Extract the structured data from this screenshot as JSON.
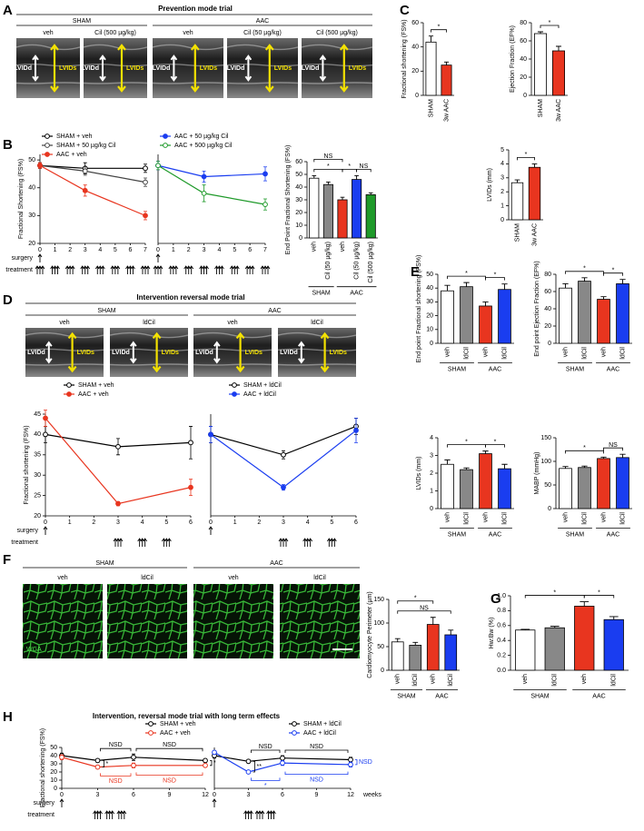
{
  "figure": {
    "panel_letters": [
      "A",
      "B",
      "C",
      "D",
      "E",
      "F",
      "G",
      "H"
    ],
    "prevention": {
      "title": "Prevention mode trial",
      "groups": [
        {
          "name": "SHAM",
          "images": [
            "veh",
            "Cil (500 µg/kg)"
          ]
        },
        {
          "name": "AAC",
          "images": [
            "veh",
            "Cil (50 µg/kg)",
            "Cil (500 µg/kg)"
          ]
        }
      ],
      "dimensions": [
        "LVIDd",
        "LVIDs"
      ]
    },
    "reversal": {
      "title": "Intervention reversal mode trial",
      "groups": [
        {
          "name": "SHAM",
          "images": [
            "veh",
            "ldCil"
          ]
        },
        {
          "name": "AAC",
          "images": [
            "veh",
            "ldCil"
          ]
        }
      ],
      "dimensions": [
        "LVIDd",
        "LVIDs"
      ]
    },
    "histology": {
      "groups": [
        {
          "name": "SHAM",
          "images": [
            "veh",
            "ldCil"
          ]
        },
        {
          "name": "AAC",
          "images": [
            "veh",
            "ldCil"
          ]
        }
      ],
      "stain": "WGA"
    },
    "long_term": {
      "title": "Intervention, reversal mode trial with long term effects"
    }
  },
  "chart_data": [
    {
      "type": "bar",
      "ylabel": "Fractional shortening (FS%)",
      "categories": [
        "SHAM",
        "3w AAC"
      ],
      "values": [
        44,
        25
      ],
      "errors": [
        5,
        2.5
      ],
      "colors": [
        "#ffffff",
        "#e8351f"
      ],
      "ylim": [
        0,
        60
      ],
      "yticks": [
        0,
        20,
        40,
        60
      ],
      "annotations": [
        {
          "text": "*",
          "from": 0,
          "to": 1
        }
      ]
    },
    {
      "type": "bar",
      "ylabel": "Ejection Fraction (EF%)",
      "categories": [
        "SHAM",
        "3w AAC"
      ],
      "values": [
        68,
        49
      ],
      "errors": [
        2,
        5
      ],
      "colors": [
        "#ffffff",
        "#e8351f"
      ],
      "ylim": [
        0,
        80
      ],
      "yticks": [
        0,
        20,
        40,
        60,
        80
      ],
      "annotations": [
        {
          "text": "*",
          "from": 0,
          "to": 1
        }
      ]
    },
    {
      "type": "bar",
      "ylabel": "LVIDs (mm)",
      "categories": [
        "SHAM",
        "3w AAC"
      ],
      "values": [
        2.65,
        3.75
      ],
      "errors": [
        0.2,
        0.25
      ],
      "colors": [
        "#ffffff",
        "#e8351f"
      ],
      "ylim": [
        0,
        5
      ],
      "yticks": [
        0,
        1,
        2,
        3,
        4,
        5
      ],
      "annotations": [
        {
          "text": "*",
          "from": 0,
          "to": 1
        }
      ]
    },
    {
      "type": "line",
      "ylabel": "Fractional Shortening (FS%)",
      "x": [
        0,
        3,
        7
      ],
      "xlim": [
        0,
        7
      ],
      "xticks": [
        0,
        1,
        2,
        3,
        4,
        5,
        6,
        7
      ],
      "ylim": [
        20,
        52
      ],
      "yticks": [
        20,
        30,
        40,
        50
      ],
      "series": [
        {
          "name": "SHAM + veh",
          "color": "#000000",
          "marker": "open",
          "values": [
            48,
            47,
            47
          ],
          "errors": [
            1,
            2,
            1.5
          ]
        },
        {
          "name": "SHAM + 50 µg/kg Cil",
          "color": "#444444",
          "marker": "open",
          "values": [
            48,
            46,
            42
          ],
          "errors": [
            1,
            1.5,
            1.5
          ]
        },
        {
          "name": "AAC + veh",
          "color": "#e8351f",
          "marker": "filled",
          "values": [
            48,
            39,
            30
          ],
          "errors": [
            1,
            2,
            1.5
          ]
        }
      ],
      "row_labels": [
        "surgery",
        "treatment"
      ],
      "surgery_x": [
        0
      ],
      "treatment_x": [
        0,
        1,
        2,
        3,
        4,
        5,
        6,
        7
      ]
    },
    {
      "type": "line",
      "x": [
        0,
        3,
        7
      ],
      "xlim": [
        0,
        7
      ],
      "xticks": [
        0,
        1,
        2,
        3,
        4,
        5,
        6,
        7
      ],
      "ylim": [
        20,
        52
      ],
      "series": [
        {
          "name": "AAC + 50 µg/kg Cil",
          "color": "#1a3df0",
          "marker": "filled",
          "values": [
            48,
            44,
            45
          ],
          "errors": [
            1.5,
            2,
            2.5
          ]
        },
        {
          "name": "AAC + 500 µg/kg Cil",
          "color": "#1f9a2a",
          "marker": "open",
          "values": [
            48,
            38,
            34
          ],
          "errors": [
            1.5,
            3,
            2
          ]
        }
      ],
      "surgery_x": [
        0
      ],
      "treatment_x": [
        0,
        1,
        2,
        3,
        4,
        5,
        6,
        7
      ]
    },
    {
      "type": "bar",
      "ylabel": "End Point Fractional Shortening (FS%)",
      "categories": [
        "veh",
        "Cil (50 µg/kg)",
        "veh",
        "Cil (50 µg/kg)",
        "Cil (500 µg/kg)"
      ],
      "values": [
        47,
        42,
        30,
        46,
        34
      ],
      "errors": [
        2,
        2,
        2,
        3,
        1.5
      ],
      "colors": [
        "#ffffff",
        "#888888",
        "#e8351f",
        "#1a3df0",
        "#1f9a2a"
      ],
      "ylim": [
        0,
        60
      ],
      "yticks": [
        0,
        10,
        20,
        30,
        40,
        50,
        60
      ],
      "groups": [
        {
          "name": "SHAM",
          "from": 0,
          "to": 1
        },
        {
          "name": "AAC",
          "from": 2,
          "to": 4
        }
      ],
      "annotations": [
        {
          "text": "*",
          "from": 0,
          "to": 2
        },
        {
          "text": "*",
          "from": 2,
          "to": 3
        },
        {
          "text": "NS",
          "from": 0,
          "to": 2
        },
        {
          "text": "NS",
          "from": 3,
          "to": 4
        }
      ]
    },
    {
      "type": "line",
      "ylabel": "Fractional shortening (FS%)",
      "x": [
        0,
        3,
        6
      ],
      "xlim": [
        0,
        6
      ],
      "xticks": [
        0,
        1,
        2,
        3,
        4,
        5,
        6
      ],
      "ylim": [
        20,
        45
      ],
      "yticks": [
        20,
        25,
        30,
        35,
        40,
        45
      ],
      "series": [
        {
          "name": "SHAM + veh",
          "color": "#000000",
          "marker": "open",
          "values": [
            40,
            37,
            38
          ],
          "errors": [
            2,
            2,
            4
          ]
        },
        {
          "name": "AAC + veh",
          "color": "#e8351f",
          "marker": "filled",
          "values": [
            44,
            23,
            27
          ],
          "errors": [
            2,
            0.5,
            2
          ]
        }
      ],
      "row_labels": [
        "surgery",
        "treatment"
      ],
      "surgery_x": [
        0
      ],
      "treatment_x": [
        3,
        4,
        5
      ]
    },
    {
      "type": "line",
      "x": [
        0,
        3,
        6
      ],
      "xlim": [
        0,
        6
      ],
      "xticks": [
        0,
        1,
        2,
        3,
        4,
        5,
        6
      ],
      "ylim": [
        20,
        45
      ],
      "series": [
        {
          "name": "SHAM + ldCil",
          "color": "#000000",
          "marker": "open",
          "values": [
            40,
            35,
            42
          ],
          "errors": [
            2,
            1,
            2
          ]
        },
        {
          "name": "AAC + ldCil",
          "color": "#1a3df0",
          "marker": "filled",
          "values": [
            40,
            27,
            41
          ],
          "errors": [
            2,
            0.7,
            3
          ]
        }
      ],
      "surgery_x": [
        0
      ],
      "treatment_x": [
        3,
        4,
        5
      ]
    },
    {
      "type": "bar",
      "ylabel": "End point Fractional shortening (FS%)",
      "categories": [
        "veh",
        "ldCil",
        "veh",
        "ldCil"
      ],
      "values": [
        38,
        41,
        27,
        39
      ],
      "errors": [
        4,
        3,
        3,
        4
      ],
      "colors": [
        "#ffffff",
        "#888888",
        "#e8351f",
        "#1a3df0"
      ],
      "ylim": [
        0,
        50
      ],
      "yticks": [
        0,
        10,
        20,
        30,
        40,
        50
      ],
      "groups": [
        {
          "name": "SHAM",
          "from": 0,
          "to": 1
        },
        {
          "name": "AAC",
          "from": 2,
          "to": 3
        }
      ],
      "annotations": [
        {
          "text": "*",
          "from": 2,
          "to": 3
        },
        {
          "text": "*",
          "from": 0,
          "to": 2
        }
      ]
    },
    {
      "type": "bar",
      "ylabel": "End point Ejection Fraction (EF%)",
      "categories": [
        "veh",
        "ldCil",
        "veh",
        "ldCil"
      ],
      "values": [
        64,
        72,
        51,
        69
      ],
      "errors": [
        5,
        4,
        3,
        5
      ],
      "colors": [
        "#ffffff",
        "#888888",
        "#e8351f",
        "#1a3df0"
      ],
      "ylim": [
        0,
        80
      ],
      "yticks": [
        0,
        20,
        40,
        60,
        80
      ],
      "groups": [
        {
          "name": "SHAM",
          "from": 0,
          "to": 1
        },
        {
          "name": "AAC",
          "from": 2,
          "to": 3
        }
      ],
      "annotations": [
        {
          "text": "*",
          "from": 2,
          "to": 3
        },
        {
          "text": "*",
          "from": 0,
          "to": 2
        }
      ]
    },
    {
      "type": "bar",
      "ylabel": "LVIDs (mm)",
      "categories": [
        "veh",
        "ldCil",
        "veh",
        "ldCil"
      ],
      "values": [
        2.5,
        2.2,
        3.1,
        2.25
      ],
      "errors": [
        0.25,
        0.1,
        0.15,
        0.25
      ],
      "colors": [
        "#ffffff",
        "#888888",
        "#e8351f",
        "#1a3df0"
      ],
      "ylim": [
        0,
        4
      ],
      "yticks": [
        0,
        1,
        2,
        3,
        4
      ],
      "groups": [
        {
          "name": "SHAM",
          "from": 0,
          "to": 1
        },
        {
          "name": "AAC",
          "from": 2,
          "to": 3
        }
      ],
      "annotations": [
        {
          "text": "*",
          "from": 2,
          "to": 3
        },
        {
          "text": "*",
          "from": 0,
          "to": 2
        }
      ]
    },
    {
      "type": "bar",
      "ylabel": "MABP (mmHg)",
      "categories": [
        "veh",
        "ldCil",
        "veh",
        "ldCil"
      ],
      "values": [
        85,
        87,
        106,
        108
      ],
      "errors": [
        4,
        3,
        3,
        7
      ],
      "colors": [
        "#ffffff",
        "#888888",
        "#e8351f",
        "#1a3df0"
      ],
      "ylim": [
        0,
        150
      ],
      "yticks": [
        0,
        50,
        100,
        150
      ],
      "groups": [
        {
          "name": "SHAM",
          "from": 0,
          "to": 1
        },
        {
          "name": "AAC",
          "from": 2,
          "to": 3
        }
      ],
      "annotations": [
        {
          "text": "NS",
          "from": 2,
          "to": 3
        },
        {
          "text": "*",
          "from": 0,
          "to": 2
        }
      ]
    },
    {
      "type": "bar",
      "ylabel": "Cardiomyocyte Perimeter (µm)",
      "categories": [
        "veh",
        "ldCil",
        "veh",
        "ldCil"
      ],
      "values": [
        60,
        53,
        97,
        75
      ],
      "errors": [
        7,
        6,
        15,
        10
      ],
      "colors": [
        "#ffffff",
        "#888888",
        "#e8351f",
        "#1a3df0"
      ],
      "ylim": [
        0,
        150
      ],
      "yticks": [
        0,
        50,
        100,
        150
      ],
      "groups": [
        {
          "name": "SHAM",
          "from": 0,
          "to": 1
        },
        {
          "name": "AAC",
          "from": 2,
          "to": 3
        }
      ],
      "annotations": [
        {
          "text": "NS",
          "from": 0,
          "to": 3
        },
        {
          "text": "*",
          "from": 0,
          "to": 2
        }
      ]
    },
    {
      "type": "bar",
      "ylabel": "Hw:Bw (%)",
      "categories": [
        "veh",
        "ldCil",
        "veh",
        "ldCil"
      ],
      "values": [
        0.54,
        0.57,
        0.86,
        0.68
      ],
      "errors": [
        0.01,
        0.02,
        0.06,
        0.04
      ],
      "colors": [
        "#ffffff",
        "#888888",
        "#e8351f",
        "#1a3df0"
      ],
      "ylim": [
        0,
        1
      ],
      "yticks": [
        {
          "value": 0,
          "label": "0.0"
        },
        0.2,
        0.4,
        0.6,
        0.8,
        {
          "value": 1,
          "label": "1.0"
        }
      ],
      "groups": [
        {
          "name": "SHAM",
          "from": 0,
          "to": 1
        },
        {
          "name": "AAC",
          "from": 2,
          "to": 3
        }
      ],
      "annotations": [
        {
          "text": "*",
          "from": 2,
          "to": 3
        },
        {
          "text": "*",
          "from": 0,
          "to": 2
        }
      ]
    },
    {
      "type": "line",
      "ylabel": "Fractional shortening (FS%)",
      "x": [
        0,
        3,
        6,
        12
      ],
      "xlim": [
        0,
        12
      ],
      "xticks": [
        0,
        3,
        6,
        9,
        12
      ],
      "ylim": [
        0,
        50
      ],
      "yticks": [
        0,
        10,
        20,
        30,
        40,
        50
      ],
      "series": [
        {
          "name": "SHAM + veh",
          "color": "#000000",
          "marker": "open",
          "values": [
            40,
            34,
            38,
            34
          ],
          "errors": [
            3,
            2,
            4,
            2
          ]
        },
        {
          "name": "AAC + veh",
          "color": "#e8351f",
          "marker": "open",
          "values": [
            38,
            26,
            28,
            28
          ],
          "errors": [
            3,
            2,
            3,
            2
          ]
        }
      ],
      "row_labels": [
        "surgery",
        "treatment"
      ],
      "surgery_x": [
        0
      ],
      "treatment_x": [
        3,
        4,
        5
      ],
      "annotations": [
        {
          "text": "NSD",
          "from": 3,
          "to": 6,
          "position": "above",
          "color": "#000000"
        },
        {
          "text": "NSD",
          "from": 6,
          "to": 12,
          "position": "above",
          "color": "#000000"
        },
        {
          "text": "*",
          "from": 3,
          "to": 3,
          "position": "between",
          "color": "#000000"
        },
        {
          "text": "*",
          "from": 12,
          "to": 12,
          "position": "between",
          "color": "#000000"
        },
        {
          "text": "NSD",
          "from": 3,
          "to": 6,
          "position": "below",
          "color": "#e8351f"
        },
        {
          "text": "NSD",
          "from": 6,
          "to": 12,
          "position": "below",
          "color": "#e8351f"
        }
      ]
    },
    {
      "type": "line",
      "xlabel": "weeks",
      "x": [
        0,
        3,
        6,
        12
      ],
      "xlim": [
        0,
        12
      ],
      "xticks": [
        0,
        3,
        6,
        9,
        12
      ],
      "ylim": [
        0,
        50
      ],
      "series": [
        {
          "name": "SHAM + ldCil",
          "color": "#000000",
          "marker": "open",
          "values": [
            40,
            33,
            37,
            35
          ],
          "errors": [
            3,
            2,
            3,
            3
          ]
        },
        {
          "name": "AAC + ldCil",
          "color": "#1a3df0",
          "marker": "open",
          "values": [
            44,
            20,
            31,
            29
          ],
          "errors": [
            2,
            1.5,
            3,
            3
          ]
        }
      ],
      "surgery_x": [
        0
      ],
      "treatment_x": [
        3,
        4,
        5
      ],
      "annotations": [
        {
          "text": "NSD",
          "from": 3,
          "to": 6,
          "position": "above",
          "color": "#000000"
        },
        {
          "text": "NSD",
          "from": 6,
          "to": 12,
          "position": "above",
          "color": "#000000"
        },
        {
          "text": "**",
          "from": 3,
          "to": 3,
          "position": "between",
          "color": "#000000"
        },
        {
          "text": "NSD",
          "from": 12,
          "to": 12,
          "position": "between",
          "color": "#1a3df0"
        },
        {
          "text": "*",
          "from": 3,
          "to": 6,
          "position": "below",
          "color": "#1a3df0"
        },
        {
          "text": "NSD",
          "from": 6,
          "to": 12,
          "position": "below",
          "color": "#1a3df0"
        }
      ]
    }
  ]
}
